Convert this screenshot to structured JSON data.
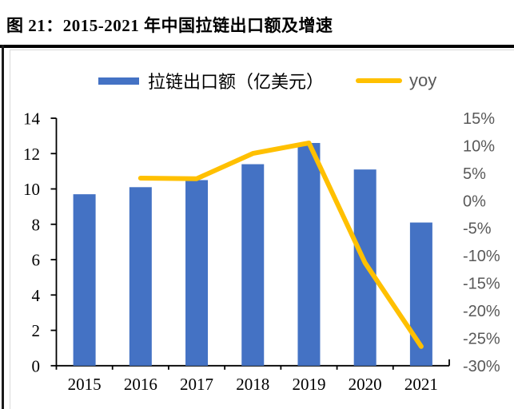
{
  "header": {
    "title": "图 21：2015-2021 年中国拉链出口额及增速"
  },
  "colors": {
    "bar": "#4472C4",
    "line": "#FFC000",
    "axis": "#000000",
    "right_axis_text": "#595959",
    "frame": "#D9D9D9"
  },
  "chart_data": {
    "type": "bar",
    "subtype": "combo-bar-line",
    "title": "图 21：2015-2021 年中国拉链出口额及增速",
    "categories": [
      "2015",
      "2016",
      "2017",
      "2018",
      "2019",
      "2020",
      "2021"
    ],
    "series": [
      {
        "name": "拉链出口额（亿美元）",
        "chart": "bar",
        "axis": "left",
        "color": "#4472C4",
        "values": [
          9.7,
          10.1,
          10.5,
          11.4,
          12.6,
          11.1,
          8.1
        ]
      },
      {
        "name": "yoy",
        "chart": "line",
        "axis": "right",
        "color": "#FFC000",
        "values": [
          null,
          4.1,
          4.0,
          8.6,
          10.5,
          -11.3,
          -26.5
        ]
      }
    ],
    "left_axis": {
      "min": 0,
      "max": 14,
      "step": 2,
      "labels": [
        "0",
        "2",
        "4",
        "6",
        "8",
        "10",
        "12",
        "14"
      ]
    },
    "right_axis": {
      "min": -30,
      "max": 15,
      "step": 5,
      "unit": "%",
      "labels_top_to_bottom": [
        "15%",
        "10%",
        "5%",
        "0%",
        "-5%",
        "-10%",
        "-15%",
        "-20%",
        "-25%",
        "-30%"
      ]
    },
    "legend_position": "top",
    "grid": false
  }
}
